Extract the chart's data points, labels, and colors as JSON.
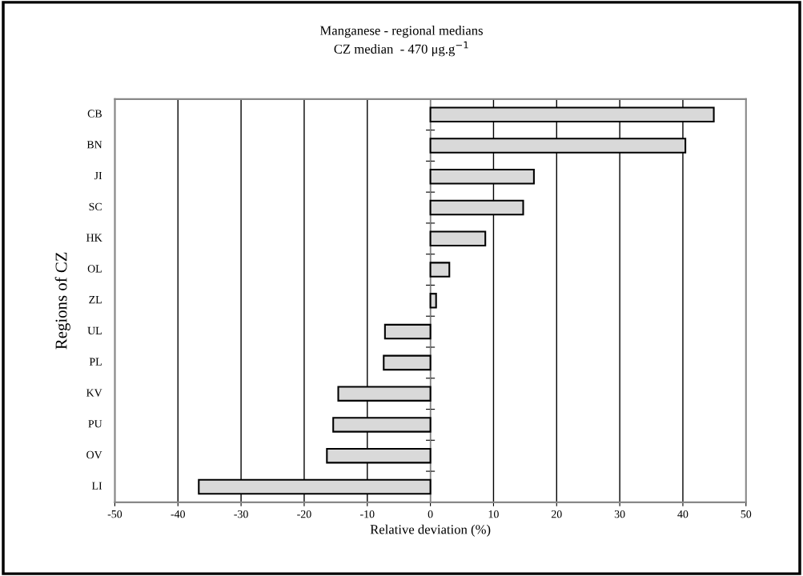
{
  "chart_data": {
    "type": "bar",
    "orientation": "horizontal",
    "title": "Manganese - regional medians",
    "subtitle": "CZ median  - 470 μg.g$^{−1}$",
    "xlabel": "Relative deviation (%)",
    "ylabel": "Regions of CZ",
    "categories": [
      "CB",
      "BN",
      "JI",
      "SC",
      "HK",
      "OL",
      "ZL",
      "UL",
      "PL",
      "KV",
      "PU",
      "OV",
      "LI"
    ],
    "values": [
      44.9,
      40.4,
      16.4,
      14.7,
      8.7,
      3.0,
      0.9,
      -7.2,
      -7.4,
      -14.6,
      -15.4,
      -16.4,
      -36.7
    ],
    "color": "#d9d9d9",
    "xlim": [
      -50,
      50
    ],
    "xticks": [
      -50,
      -40,
      -30,
      -20,
      -10,
      0,
      10,
      20,
      30,
      40,
      50
    ],
    "grid": "x",
    "legend": false
  }
}
